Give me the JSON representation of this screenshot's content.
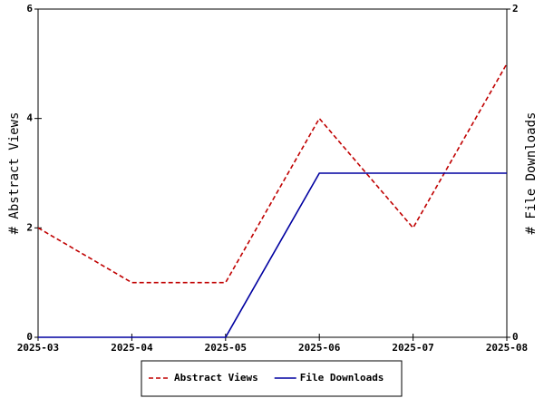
{
  "chart_data": {
    "type": "line",
    "x_label": null,
    "y_label": "# Abstract Views",
    "y2_label": "# File Downloads",
    "categories": [
      "2025-03",
      "2025-04",
      "2025-05",
      "2025-06",
      "2025-07",
      "2025-08"
    ],
    "series": [
      {
        "name": "Abstract Views",
        "color": "#c00000",
        "dashed": true,
        "values": [
          2,
          1,
          1,
          4,
          2,
          5
        ]
      },
      {
        "name": "File Downloads",
        "color": "#0000a0",
        "axis": "y2",
        "values": [
          0,
          0,
          0,
          1,
          1,
          1
        ]
      }
    ],
    "ylim": [
      0,
      6
    ],
    "yticks": [
      0,
      2,
      4,
      6
    ],
    "y2lim": [
      0,
      2
    ],
    "y2ticks": [
      0,
      2
    ],
    "legend": "bottom"
  }
}
